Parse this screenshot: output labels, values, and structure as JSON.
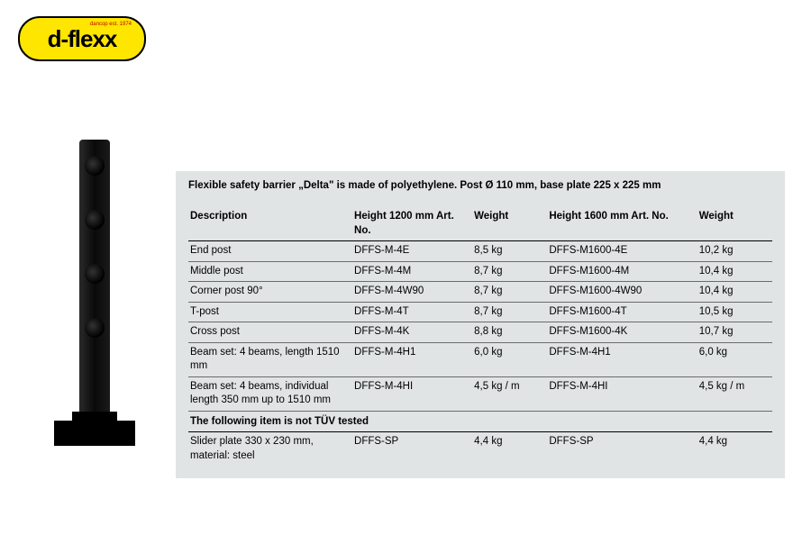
{
  "logo": {
    "text": "d-flexx",
    "sub": "dancop est. 1974"
  },
  "table": {
    "title": "Flexible safety barrier „Delta\" is made of polyethylene. Post Ø 110 mm, base plate 225 x 225 mm",
    "columns": [
      "Description",
      "Height 1200 mm Art. No.",
      "Weight",
      "Height 1600 mm Art. No.",
      "Weight"
    ],
    "rows": [
      {
        "desc": "End post",
        "art1": "DFFS-M-4E",
        "w1": "8,5 kg",
        "art2": "DFFS-M1600-4E",
        "w2": "10,2 kg"
      },
      {
        "desc": "Middle post",
        "art1": "DFFS-M-4M",
        "w1": "8,7 kg",
        "art2": "DFFS-M1600-4M",
        "w2": "10,4 kg"
      },
      {
        "desc": "Corner post 90°",
        "art1": "DFFS-M-4W90",
        "w1": "8,7 kg",
        "art2": "DFFS-M1600-4W90",
        "w2": "10,4 kg"
      },
      {
        "desc": "T-post",
        "art1": "DFFS-M-4T",
        "w1": "8,7 kg",
        "art2": "DFFS-M1600-4T",
        "w2": "10,5 kg"
      },
      {
        "desc": "Cross post",
        "art1": "DFFS-M-4K",
        "w1": "8,8 kg",
        "art2": "DFFS-M1600-4K",
        "w2": "10,7 kg"
      },
      {
        "desc": "Beam set: 4 beams, length 1510 mm",
        "art1": "DFFS-M-4H1",
        "w1": "6,0 kg",
        "art2": "DFFS-M-4H1",
        "w2": "6,0 kg"
      },
      {
        "desc": "Beam set: 4 beams, individual length 350 mm up to 1510 mm",
        "art1": "DFFS-M-4HI",
        "w1": "4,5 kg / m",
        "art2": "DFFS-M-4HI",
        "w2": "4,5 kg / m"
      }
    ],
    "section_label": "The following item is not TÜV tested",
    "rows2": [
      {
        "desc": "Slider plate 330 x 230 mm, material: steel",
        "art1": "DFFS-SP",
        "w1": "4,4 kg",
        "art2": "DFFS-SP",
        "w2": "4,4 kg"
      }
    ]
  }
}
